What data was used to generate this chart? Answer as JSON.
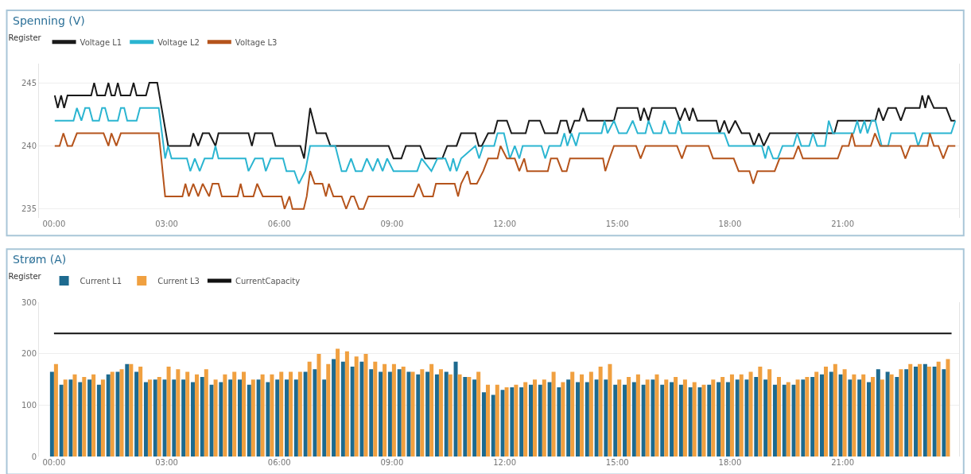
{
  "chart_data": [
    {
      "type": "line",
      "title": "Spenning (V)",
      "legend_title": "Register",
      "legend": "top left",
      "grid": "y",
      "marker": "none",
      "line_style": "solid",
      "xlim": [
        -0.4,
        24.1
      ],
      "xticks": [
        {
          "value": 0,
          "label": "00:00"
        },
        {
          "value": 3,
          "label": "03:00"
        },
        {
          "value": 6,
          "label": "06:00"
        },
        {
          "value": 9,
          "label": "09:00"
        },
        {
          "value": 12,
          "label": "12:00"
        },
        {
          "value": 15,
          "label": "15:00"
        },
        {
          "value": 18,
          "label": "18:00"
        },
        {
          "value": 21,
          "label": "21:00"
        }
      ],
      "ylim": [
        234.3,
        246.5
      ],
      "yticks": [
        235,
        240,
        245
      ],
      "series": [
        {
          "name": "Voltage L1",
          "color": "#1a1a1a",
          "x": [
            0.02,
            0.1,
            0.19,
            0.27,
            0.36,
            0.99,
            1.07,
            1.15,
            1.36,
            1.45,
            1.53,
            1.62,
            1.7,
            1.78,
            2.03,
            2.12,
            2.2,
            2.45,
            2.54,
            2.75,
            3.04,
            3.63,
            3.71,
            3.84,
            3.96,
            4.13,
            4.3,
            4.38,
            5.18,
            5.27,
            5.35,
            5.81,
            5.9,
            6.56,
            6.66,
            6.82,
            6.99,
            7.24,
            7.36,
            8.91,
            9.04,
            9.25,
            9.37,
            9.75,
            9.88,
            10.34,
            10.47,
            10.72,
            10.84,
            11.22,
            11.31,
            11.39,
            11.56,
            11.72,
            11.81,
            12.06,
            12.18,
            12.56,
            12.65,
            12.94,
            13.07,
            13.4,
            13.49,
            13.65,
            13.74,
            13.86,
            13.99,
            14.09,
            14.2,
            14.91,
            15.0,
            15.54,
            15.62,
            15.71,
            15.83,
            15.92,
            16.55,
            16.67,
            16.8,
            16.92,
            17.01,
            17.13,
            17.64,
            17.72,
            17.85,
            17.97,
            18.14,
            18.31,
            18.52,
            18.64,
            18.77,
            18.9,
            19.06,
            20.78,
            20.87,
            21.87,
            21.96,
            22.08,
            22.21,
            22.42,
            22.55,
            22.67,
            23.05,
            23.12,
            23.2,
            23.28,
            23.43,
            23.76,
            23.89,
            24.0
          ],
          "values": [
            244,
            243,
            244,
            243,
            244,
            244,
            245,
            244,
            244,
            245,
            244,
            244,
            245,
            244,
            244,
            245,
            244,
            244,
            245,
            245,
            240,
            240,
            241,
            240,
            241,
            241,
            240,
            241,
            241,
            240,
            241,
            241,
            240,
            240,
            239,
            243,
            241,
            241,
            240,
            240,
            239,
            239,
            240,
            240,
            239,
            239,
            240,
            240,
            241,
            241,
            240,
            240,
            241,
            241,
            242,
            242,
            241,
            241,
            242,
            242,
            241,
            241,
            242,
            242,
            241,
            242,
            242,
            243,
            242,
            242,
            243,
            243,
            242,
            243,
            242,
            243,
            243,
            242,
            243,
            242,
            243,
            242,
            242,
            241,
            242,
            241,
            242,
            241,
            241,
            240,
            241,
            240,
            241,
            241,
            242,
            242,
            243,
            242,
            243,
            243,
            242,
            243,
            243,
            244,
            243,
            244,
            243,
            243,
            242,
            242
          ]
        },
        {
          "name": "Voltage L2",
          "color": "#2bb5d1",
          "x": [
            0.02,
            0.52,
            0.61,
            0.73,
            0.83,
            0.94,
            1.03,
            1.2,
            1.28,
            1.36,
            1.45,
            1.7,
            1.78,
            1.87,
            1.95,
            2.2,
            2.29,
            2.79,
            2.96,
            3.04,
            3.13,
            3.54,
            3.63,
            3.75,
            3.88,
            4.01,
            4.22,
            4.3,
            4.38,
            5.1,
            5.18,
            5.35,
            5.56,
            5.64,
            5.77,
            6.1,
            6.19,
            6.4,
            6.52,
            6.69,
            6.82,
            7.49,
            7.66,
            7.78,
            7.91,
            8.03,
            8.2,
            8.33,
            8.49,
            8.62,
            8.75,
            8.87,
            9.04,
            9.67,
            9.79,
            10.05,
            10.21,
            10.42,
            10.55,
            10.63,
            10.72,
            10.84,
            11.22,
            11.32,
            11.43,
            11.72,
            11.81,
            11.98,
            12.06,
            12.14,
            12.27,
            12.39,
            12.48,
            12.98,
            13.08,
            13.19,
            13.49,
            13.59,
            13.67,
            13.78,
            13.9,
            13.99,
            14.58,
            14.66,
            14.74,
            14.91,
            15.04,
            15.25,
            15.41,
            15.54,
            15.75,
            15.83,
            15.96,
            16.17,
            16.25,
            16.38,
            16.55,
            16.63,
            16.72,
            17.85,
            17.97,
            18.85,
            18.94,
            19.02,
            19.15,
            19.27,
            19.4,
            19.69,
            19.79,
            19.9,
            20.11,
            20.21,
            20.32,
            20.53,
            20.63,
            20.74,
            21.29,
            21.39,
            21.47,
            21.58,
            21.66,
            21.77,
            21.87,
            22.04,
            22.21,
            22.29,
            22.92,
            23.01,
            23.13,
            23.89,
            24.0
          ],
          "values": [
            242,
            242,
            243,
            242,
            243,
            243,
            242,
            242,
            243,
            243,
            242,
            242,
            243,
            243,
            242,
            242,
            243,
            243,
            239,
            240,
            239,
            239,
            238,
            239,
            238,
            239,
            239,
            240,
            239,
            239,
            238,
            239,
            239,
            238,
            239,
            239,
            238,
            238,
            237,
            238,
            240,
            240,
            238,
            238,
            239,
            238,
            238,
            239,
            238,
            239,
            238,
            239,
            238,
            238,
            239,
            238,
            239,
            239,
            238,
            239,
            238,
            239,
            240,
            239,
            240,
            240,
            241,
            241,
            240,
            239,
            240,
            239,
            240,
            240,
            239,
            240,
            240,
            241,
            240,
            241,
            240,
            241,
            241,
            242,
            241,
            242,
            241,
            241,
            242,
            241,
            241,
            242,
            241,
            241,
            242,
            241,
            241,
            242,
            241,
            241,
            240,
            240,
            239,
            240,
            239,
            239,
            240,
            240,
            241,
            240,
            240,
            241,
            240,
            240,
            242,
            241,
            241,
            242,
            241,
            242,
            241,
            242,
            242,
            240,
            240,
            241,
            241,
            240,
            241,
            241,
            242
          ]
        },
        {
          "name": "Voltage L3",
          "color": "#b5541c",
          "x": [
            0.02,
            0.15,
            0.25,
            0.36,
            0.48,
            0.61,
            1.32,
            1.45,
            1.53,
            1.66,
            1.78,
            2.79,
            2.96,
            3.42,
            3.5,
            3.59,
            3.71,
            3.84,
            3.96,
            4.13,
            4.22,
            4.38,
            4.47,
            4.89,
            4.97,
            5.05,
            5.31,
            5.41,
            5.56,
            6.06,
            6.14,
            6.27,
            6.35,
            6.65,
            6.73,
            6.82,
            6.94,
            7.15,
            7.24,
            7.32,
            7.44,
            7.66,
            7.78,
            7.91,
            7.99,
            8.12,
            8.24,
            8.37,
            9.58,
            9.71,
            9.84,
            10.09,
            10.17,
            10.67,
            10.76,
            10.84,
            11.01,
            11.09,
            11.26,
            11.43,
            11.56,
            11.81,
            11.89,
            12.06,
            12.27,
            12.39,
            12.52,
            12.6,
            12.73,
            13.15,
            13.23,
            13.4,
            13.53,
            13.65,
            13.74,
            14.62,
            14.68,
            14.79,
            14.91,
            15.5,
            15.62,
            15.75,
            16.59,
            16.72,
            16.84,
            17.43,
            17.55,
            18.1,
            18.23,
            18.52,
            18.62,
            18.73,
            19.19,
            19.32,
            19.69,
            19.82,
            19.94,
            20.87,
            20.99,
            21.16,
            21.25,
            21.33,
            21.75,
            21.86,
            22.0,
            22.55,
            22.67,
            22.8,
            23.26,
            23.32,
            23.43,
            23.55,
            23.68,
            23.81,
            24.0
          ],
          "values": [
            240,
            240,
            241,
            240,
            240,
            241,
            241,
            240,
            241,
            240,
            241,
            241,
            236,
            236,
            237,
            236,
            237,
            236,
            237,
            236,
            237,
            237,
            236,
            236,
            237,
            236,
            236,
            237,
            236,
            236,
            235,
            236,
            235,
            235,
            236,
            238,
            237,
            237,
            236,
            237,
            236,
            236,
            235,
            236,
            236,
            235,
            235,
            236,
            236,
            237,
            236,
            236,
            237,
            237,
            236,
            237,
            238,
            237,
            237,
            238,
            239,
            239,
            240,
            239,
            239,
            238,
            239,
            238,
            238,
            238,
            239,
            239,
            238,
            238,
            239,
            239,
            238,
            239,
            240,
            240,
            239,
            240,
            240,
            239,
            240,
            240,
            239,
            239,
            238,
            238,
            237,
            238,
            238,
            239,
            239,
            240,
            239,
            239,
            240,
            240,
            241,
            240,
            240,
            241,
            240,
            240,
            239,
            240,
            240,
            241,
            240,
            240,
            239,
            240,
            240
          ]
        }
      ]
    },
    {
      "type": "bar",
      "title": "Strøm (A)",
      "legend_title": "Register",
      "legend": "top left",
      "grid": "y",
      "x": [
        0,
        0.25,
        0.5,
        0.75,
        1,
        1.25,
        1.5,
        1.75,
        2,
        2.25,
        2.5,
        2.75,
        3,
        3.25,
        3.5,
        3.75,
        4,
        4.25,
        4.5,
        4.75,
        5,
        5.25,
        5.5,
        5.75,
        6,
        6.25,
        6.5,
        6.75,
        7,
        7.25,
        7.5,
        7.75,
        8,
        8.25,
        8.5,
        8.75,
        9,
        9.25,
        9.5,
        9.75,
        10,
        10.25,
        10.5,
        10.75,
        11,
        11.25,
        11.5,
        11.75,
        12,
        12.25,
        12.5,
        12.75,
        13,
        13.25,
        13.5,
        13.75,
        14,
        14.25,
        14.5,
        14.75,
        15,
        15.25,
        15.5,
        15.75,
        16,
        16.25,
        16.5,
        16.75,
        17,
        17.25,
        17.5,
        17.75,
        18,
        18.25,
        18.5,
        18.75,
        19,
        19.25,
        19.5,
        19.75,
        20,
        20.25,
        20.5,
        20.75,
        21,
        21.25,
        21.5,
        21.75,
        22,
        22.25,
        22.5,
        22.75,
        23,
        23.25,
        23.5,
        23.75
      ],
      "xlim": [
        -0.4,
        24.1
      ],
      "xticks": [
        {
          "value": 0,
          "label": "00:00"
        },
        {
          "value": 3,
          "label": "03:00"
        },
        {
          "value": 6,
          "label": "06:00"
        },
        {
          "value": 9,
          "label": "09:00"
        },
        {
          "value": 12,
          "label": "12:00"
        },
        {
          "value": 15,
          "label": "15:00"
        },
        {
          "value": 18,
          "label": "18:00"
        },
        {
          "value": 21,
          "label": "21:00"
        }
      ],
      "ylim": [
        0,
        300
      ],
      "yticks": [
        0,
        100,
        200,
        300
      ],
      "series": [
        {
          "name": "Current L1",
          "color": "#1d6a8f",
          "values": [
            165,
            140,
            150,
            145,
            150,
            140,
            160,
            165,
            180,
            165,
            145,
            150,
            150,
            150,
            150,
            145,
            155,
            140,
            145,
            150,
            150,
            140,
            150,
            145,
            150,
            150,
            150,
            165,
            170,
            150,
            190,
            185,
            175,
            185,
            170,
            165,
            165,
            170,
            165,
            160,
            165,
            160,
            165,
            185,
            155,
            150,
            125,
            120,
            130,
            135,
            135,
            140,
            140,
            145,
            135,
            150,
            145,
            145,
            150,
            150,
            140,
            140,
            145,
            140,
            150,
            140,
            145,
            140,
            135,
            135,
            140,
            145,
            145,
            150,
            150,
            155,
            150,
            140,
            140,
            140,
            150,
            155,
            160,
            165,
            160,
            150,
            150,
            145,
            170,
            165,
            155,
            170,
            175,
            180,
            175,
            170
          ]
        },
        {
          "name": "Current L3",
          "color": "#f0a040",
          "values": [
            180,
            150,
            160,
            155,
            160,
            150,
            165,
            170,
            180,
            175,
            150,
            155,
            175,
            170,
            165,
            160,
            170,
            150,
            160,
            165,
            165,
            150,
            160,
            160,
            165,
            165,
            165,
            185,
            200,
            180,
            210,
            205,
            195,
            200,
            185,
            180,
            180,
            175,
            165,
            170,
            180,
            170,
            160,
            160,
            155,
            165,
            140,
            140,
            135,
            140,
            145,
            150,
            150,
            165,
            145,
            165,
            160,
            165,
            175,
            180,
            150,
            155,
            160,
            150,
            160,
            150,
            155,
            150,
            145,
            140,
            150,
            155,
            160,
            160,
            165,
            175,
            170,
            155,
            145,
            150,
            155,
            165,
            175,
            180,
            170,
            160,
            160,
            155,
            150,
            160,
            170,
            180,
            180,
            175,
            185,
            190
          ]
        },
        {
          "name": "CurrentCapacity",
          "type": "line",
          "color": "#111111",
          "x": [
            0,
            23.9
          ],
          "values": [
            240,
            240
          ]
        }
      ]
    }
  ]
}
